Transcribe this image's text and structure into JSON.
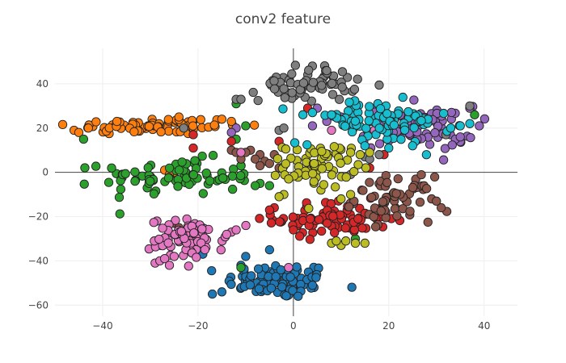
{
  "chart_data": {
    "type": "scatter",
    "title": "conv2 feature",
    "xlabel": "",
    "ylabel": "",
    "xlim": [
      -50,
      47
    ],
    "ylim": [
      -65,
      56
    ],
    "x_ticks": [
      -40,
      -20,
      0,
      20,
      40
    ],
    "x_tick_labels": [
      "−40",
      "−20",
      "0",
      "20",
      "40"
    ],
    "y_ticks": [
      -60,
      -40,
      -20,
      0,
      20,
      40
    ],
    "y_tick_labels": [
      "−60",
      "−40",
      "−20",
      "0",
      "20",
      "40"
    ],
    "grid": true,
    "legend": "none",
    "clusters": [
      {
        "color": "#1f77b4",
        "center": [
          -3,
          -49
        ],
        "spread": [
          5.5,
          4
        ],
        "count": 90,
        "extra": [
          [
            -17,
            -55
          ],
          [
            -15,
            -54
          ],
          [
            -11,
            -42
          ],
          [
            -19,
            -37
          ],
          [
            4,
            -51
          ],
          [
            -10,
            -38
          ],
          [
            -5,
            -35
          ]
        ]
      },
      {
        "color": "#ff7f0e",
        "center": [
          -29,
          21
        ],
        "spread": [
          9,
          2
        ],
        "count": 80,
        "extra": [
          [
            -46,
            19
          ],
          [
            -45,
            18
          ],
          [
            -43,
            20
          ],
          [
            -13,
            23
          ],
          [
            -15,
            24
          ],
          [
            -24,
            25
          ],
          [
            -37,
            23
          ],
          [
            -27,
            1
          ],
          [
            -25,
            0
          ],
          [
            -26,
            -1
          ]
        ]
      },
      {
        "color": "#2ca02c",
        "center": [
          -24,
          -2
        ],
        "spread": [
          8,
          4
        ],
        "count": 80,
        "extra": [
          [
            -44,
            15
          ],
          [
            -12,
            31
          ],
          [
            -11,
            33
          ],
          [
            -10,
            21
          ],
          [
            -7,
            -5
          ],
          [
            -8,
            -6
          ],
          [
            -5,
            -6
          ],
          [
            13,
            -30
          ],
          [
            -12,
            15
          ],
          [
            38,
            26
          ],
          [
            -11,
            -43
          ]
        ]
      },
      {
        "color": "#d62728",
        "center": [
          8,
          -21
        ],
        "spread": [
          6,
          4
        ],
        "count": 85,
        "extra": [
          [
            -21,
            11
          ],
          [
            -13,
            14
          ],
          [
            -3,
            14
          ],
          [
            3,
            29
          ],
          [
            16,
            2
          ],
          [
            -4,
            -16
          ],
          [
            -5,
            -17
          ],
          [
            0,
            -26
          ],
          [
            -21,
            17
          ],
          [
            19,
            8
          ]
        ]
      },
      {
        "color": "#9467bd",
        "center": [
          26,
          20
        ],
        "spread": [
          6,
          5
        ],
        "count": 70,
        "extra": [
          [
            -12,
            20
          ],
          [
            -13,
            18
          ],
          [
            5,
            29
          ],
          [
            4,
            21
          ],
          [
            7,
            23
          ],
          [
            10,
            25
          ],
          [
            35,
            16
          ],
          [
            39,
            21
          ],
          [
            37,
            29
          ]
        ]
      },
      {
        "color": "#8c564b",
        "center": [
          21,
          -12
        ],
        "spread": [
          4,
          5
        ],
        "count": 65,
        "extra": [
          [
            -25,
            -23
          ],
          [
            -9,
            10
          ],
          [
            -7,
            8
          ],
          [
            -8,
            6
          ],
          [
            -6,
            5
          ],
          [
            -5,
            4
          ],
          [
            -3,
            2
          ],
          [
            -10,
            9
          ],
          [
            -4,
            8
          ],
          [
            -13,
            10
          ],
          [
            -11,
            6
          ],
          [
            -12,
            9
          ],
          [
            -7,
            3
          ],
          [
            -24,
            -25
          ],
          [
            31,
            -16
          ],
          [
            29,
            -12
          ],
          [
            30,
            -13
          ]
        ]
      },
      {
        "color": "#e377c2",
        "center": [
          -22,
          -30
        ],
        "spread": [
          4,
          4.5
        ],
        "count": 75,
        "extra": [
          [
            -29,
            -41
          ],
          [
            -28,
            -40
          ],
          [
            -27,
            -39
          ],
          [
            -26,
            -42
          ],
          [
            -25,
            -38
          ],
          [
            -13,
            -27
          ],
          [
            -12,
            -26
          ],
          [
            -14,
            -28
          ],
          [
            -11,
            9
          ],
          [
            8,
            19
          ],
          [
            17,
            19
          ],
          [
            -1,
            -43
          ]
        ]
      },
      {
        "color": "#7f7f7f",
        "center": [
          3,
          40
        ],
        "spread": [
          5,
          4
        ],
        "count": 65,
        "extra": [
          [
            -12,
            33
          ],
          [
            -11,
            33
          ],
          [
            -3,
            19
          ],
          [
            -2,
            20
          ],
          [
            32,
            17
          ],
          [
            37,
            30
          ],
          [
            15,
            7
          ],
          [
            12,
            -1
          ],
          [
            16,
            6
          ],
          [
            18,
            8
          ],
          [
            -23,
            20
          ]
        ]
      },
      {
        "color": "#bcbd22",
        "center": [
          5,
          3
        ],
        "spread": [
          3.5,
          5
        ],
        "count": 65,
        "extra": [
          [
            8,
            -32
          ],
          [
            10,
            -33
          ],
          [
            9,
            -31
          ],
          [
            11,
            -31
          ],
          [
            13,
            -32
          ],
          [
            15,
            -32
          ],
          [
            -1,
            -3
          ],
          [
            -2,
            -10
          ],
          [
            -3,
            -11
          ],
          [
            12,
            -10
          ],
          [
            10,
            -12
          ],
          [
            14,
            8
          ],
          [
            12,
            9
          ],
          [
            16,
            9
          ]
        ]
      },
      {
        "color": "#17becf",
        "center": [
          17,
          23
        ],
        "spread": [
          8,
          5
        ],
        "count": 85,
        "extra": [
          [
            2,
            26
          ],
          [
            4,
            27
          ],
          [
            8,
            26
          ],
          [
            15,
            12
          ],
          [
            20,
            11
          ],
          [
            25,
            12
          ],
          [
            33,
            20
          ],
          [
            35,
            21
          ],
          [
            37,
            22
          ]
        ]
      }
    ]
  }
}
